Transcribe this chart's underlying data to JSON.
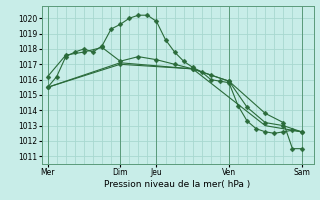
{
  "title": "",
  "xlabel": "Pression niveau de la mer( hPa )",
  "ylabel": "",
  "bg_color": "#c8ede8",
  "grid_color": "#a8d8d0",
  "line_color": "#2a6b3a",
  "ylim": [
    1010.5,
    1020.8
  ],
  "yticks": [
    1011,
    1012,
    1013,
    1014,
    1015,
    1016,
    1017,
    1018,
    1019,
    1020
  ],
  "day_labels": [
    "Mer",
    "",
    "Dim",
    "Jeu",
    "",
    "Ven",
    "",
    "Sam"
  ],
  "day_positions": [
    0,
    24,
    48,
    72,
    96,
    120,
    144,
    168
  ],
  "xlim": [
    -4,
    176
  ],
  "line1_x": [
    0,
    6,
    12,
    18,
    24,
    30,
    36,
    42,
    48,
    54,
    60,
    66,
    72,
    78,
    84,
    90,
    96,
    102,
    108,
    114,
    120,
    126,
    132,
    138,
    144,
    150,
    156,
    162,
    168
  ],
  "line1_y": [
    1015.5,
    1016.2,
    1017.5,
    1017.8,
    1018.0,
    1017.8,
    1018.2,
    1019.3,
    1019.6,
    1020.0,
    1020.2,
    1020.2,
    1019.8,
    1018.6,
    1017.8,
    1017.2,
    1016.8,
    1016.5,
    1016.0,
    1015.9,
    1015.8,
    1014.3,
    1013.3,
    1012.8,
    1012.6,
    1012.5,
    1012.6,
    1012.7,
    1012.6
  ],
  "line1_markers": [
    0,
    12,
    24,
    36,
    42,
    48,
    60,
    72,
    84,
    96,
    108,
    120,
    132,
    144,
    156,
    168
  ],
  "line2_x": [
    0,
    12,
    24,
    36,
    48,
    60,
    72,
    84,
    96,
    108,
    120,
    132,
    144,
    156,
    168
  ],
  "line2_y": [
    1016.2,
    1017.6,
    1017.8,
    1018.1,
    1017.2,
    1017.5,
    1017.3,
    1017.0,
    1016.7,
    1016.3,
    1015.9,
    1014.2,
    1013.2,
    1013.0,
    1012.6
  ],
  "line3_x": [
    0,
    48,
    96,
    144,
    168
  ],
  "line3_y": [
    1015.5,
    1017.1,
    1016.7,
    1013.0,
    1012.6
  ],
  "line4_x": [
    0,
    48,
    96,
    120,
    144,
    156,
    162,
    168
  ],
  "line4_y": [
    1015.5,
    1017.0,
    1016.7,
    1015.9,
    1013.8,
    1013.2,
    1011.5,
    1011.5
  ],
  "vline_day_x": [
    0,
    48,
    72,
    120,
    168
  ],
  "marker": "D",
  "marker_size": 2.5,
  "linewidth": 0.8
}
